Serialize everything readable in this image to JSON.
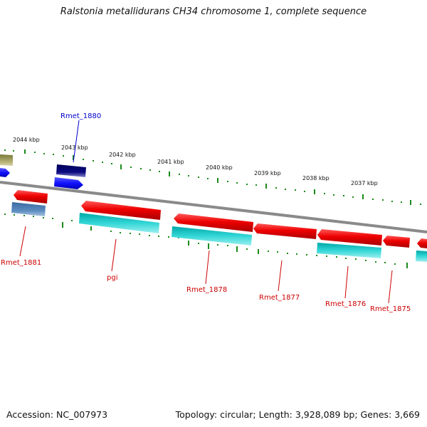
{
  "title": "Ralstonia metallidurans CH34 chromosome 1, complete sequence",
  "footer": {
    "accession": "Accession: NC_007973",
    "topology": "Topology: circular; Length: 3,928,089 bp; Genes: 3,669"
  },
  "colors": {
    "backbone": "#8a8a8a",
    "ticks": "#1a8a1a",
    "forward_label": "#0000cc",
    "reverse_label": "#cc0000"
  },
  "kbp_labels": [
    "2044 kbp",
    "2043 kbp",
    "2042 kbp",
    "2041 kbp",
    "2040 kbp",
    "2039 kbp",
    "2038 kbp",
    "2037 kbp"
  ],
  "gene_labels": [
    "Rmet_1880",
    "Rmet_1881",
    "pgi",
    "Rmet_1878",
    "Rmet_1877",
    "Rmet_1876",
    "Rmet_1875"
  ]
}
